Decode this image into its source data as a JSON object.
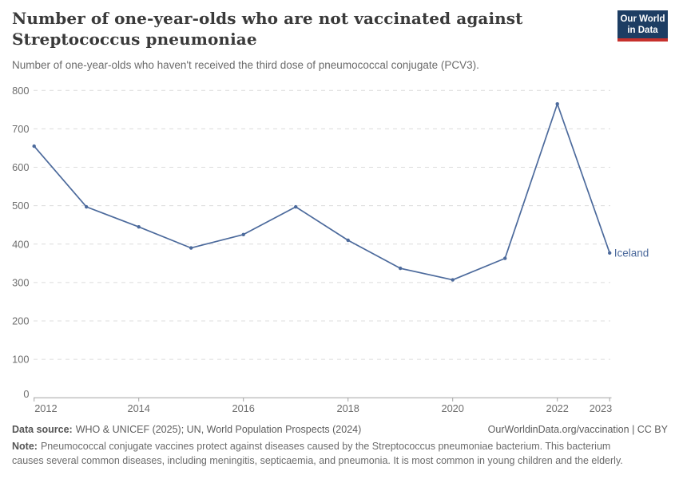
{
  "header": {
    "title_lines": [
      "Number of one-year-olds who are not vaccinated against",
      "Streptococcus pneumoniae"
    ],
    "subtitle": "Number of one-year-olds who haven't received the third dose of pneumococcal conjugate (PCV3).",
    "logo": {
      "line1": "Our World",
      "line2": "in Data",
      "bg_color": "#1d3d63",
      "accent_color": "#c6302c"
    }
  },
  "chart_data": {
    "type": "line",
    "title": "Number of one-year-olds who are not vaccinated against Streptococcus pneumoniae",
    "xlabel": "",
    "ylabel": "",
    "x": [
      2012,
      2013,
      2014,
      2015,
      2016,
      2017,
      2018,
      2019,
      2020,
      2021,
      2022,
      2023
    ],
    "series": [
      {
        "name": "Iceland",
        "color": "#4c6a9c",
        "values": [
          655,
          497,
          445,
          390,
          425,
          497,
          410,
          337,
          307,
          363,
          765,
          377
        ]
      }
    ],
    "xticks": [
      2012,
      2014,
      2016,
      2018,
      2020,
      2022,
      2023
    ],
    "yticks": [
      0,
      100,
      200,
      300,
      400,
      500,
      600,
      700,
      800
    ],
    "ylim": [
      0,
      800
    ],
    "grid": "horizontal-dashed",
    "gridline_color": "#dcdcdc",
    "axis_color": "#a3a3a3",
    "tick_label_color": "#6e6e6e",
    "legend_position": "end-of-line-label",
    "end_label": "Iceland"
  },
  "footer": {
    "data_source_label": "Data source:",
    "data_source_text": "WHO & UNICEF (2025); UN, World Population Prospects (2024)",
    "link_text": "OurWorldinData.org/vaccination | CC BY",
    "note_label": "Note:",
    "note_text": "Pneumococcal conjugate vaccines protect against diseases caused by the Streptococcus pneumoniae bacterium. This bacterium causes several common diseases, including meningitis, septicaemia, and pneumonia. It is most common in young children and the elderly."
  }
}
